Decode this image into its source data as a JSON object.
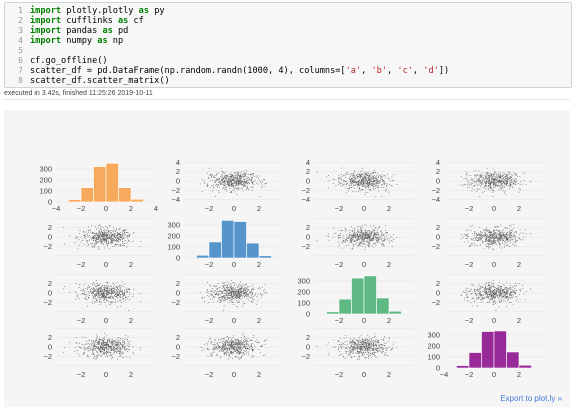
{
  "cell": {
    "lines": [
      {
        "n": "1",
        "kw": "import",
        "rest": " plotly.plotly ",
        "kw2": "as",
        "rest2": " py"
      },
      {
        "n": "2",
        "kw": "import",
        "rest": " cufflinks ",
        "kw2": "as",
        "rest2": " cf"
      },
      {
        "n": "3",
        "kw": "import",
        "rest": " pandas ",
        "kw2": "as",
        "rest2": " pd"
      },
      {
        "n": "4",
        "kw": "import",
        "rest": " numpy ",
        "kw2": "as",
        "rest2": " np"
      },
      {
        "n": "5"
      },
      {
        "n": "6",
        "text": "cf.go_offline()"
      },
      {
        "n": "7",
        "text": "scatter_df = pd.DataFrame(np.random.randn(1000, 4), columns=['a', 'b', 'c', 'd'])"
      },
      {
        "n": "8",
        "text": "scatter_df.scatter_matrix()"
      }
    ],
    "exec_info": "executed in 3.42s, finished 11:25:26 2019-10-11"
  },
  "export_label": "Export to plot.ly »",
  "colors": {
    "a": "#f7a454",
    "b": "#4d8fc9",
    "c": "#57b47d",
    "d": "#931f93",
    "scatter": "#5c5c5c"
  },
  "chart_data": {
    "type": "scatter",
    "title": "",
    "columns": [
      "a",
      "b",
      "c",
      "d"
    ],
    "n_points": 1000,
    "histograms": {
      "a": {
        "bin_edges": [
          -3,
          -2,
          -1,
          0,
          1,
          2,
          3
        ],
        "counts": [
          22,
          130,
          320,
          350,
          130,
          25
        ]
      },
      "b": {
        "bin_edges": [
          -3,
          -2,
          -1,
          0,
          1,
          2,
          3
        ],
        "counts": [
          25,
          145,
          340,
          330,
          135,
          20
        ]
      },
      "c": {
        "bin_edges": [
          -3,
          -2,
          -1,
          0,
          1,
          2,
          3
        ],
        "counts": [
          20,
          135,
          325,
          345,
          145,
          25
        ]
      },
      "d": {
        "bin_edges": [
          -3,
          -2,
          -1,
          0,
          1,
          2,
          3
        ],
        "counts": [
          22,
          140,
          330,
          335,
          145,
          25
        ]
      }
    },
    "hist_yticks": [
      "0",
      "100",
      "200",
      "300"
    ],
    "scatter_yticks": [
      "−4",
      "−2",
      "0",
      "2",
      "4"
    ],
    "diag_xticks": {
      "a": [
        "−4",
        "−2",
        "0",
        "2",
        "4"
      ],
      "b": [
        "−2",
        "0",
        "2"
      ],
      "c": [
        "−2",
        "0",
        "2"
      ],
      "d": [
        "−4",
        "−2",
        "0",
        "2"
      ]
    },
    "scatter_xticks": [
      "−2",
      "0",
      "2"
    ]
  }
}
